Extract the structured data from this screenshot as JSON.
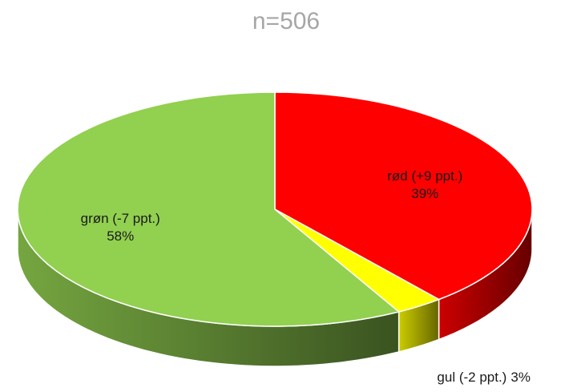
{
  "chart_data": {
    "type": "pie",
    "title": "n=506",
    "categories": [
      "rød (+9 ppt.)",
      "gul (-2 ppt.)",
      "grøn (-7 ppt.)"
    ],
    "values": [
      39,
      3,
      58
    ],
    "value_labels": [
      "39%",
      "3%",
      "58%"
    ],
    "colors": [
      "#ff0000",
      "#ffff00",
      "#92d050"
    ]
  }
}
